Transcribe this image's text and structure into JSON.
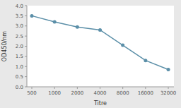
{
  "chart_data": {
    "type": "line",
    "x": [
      500,
      1000,
      2000,
      4000,
      8000,
      16000,
      32000
    ],
    "y": [
      3.5,
      3.2,
      2.95,
      2.8,
      2.05,
      1.3,
      0.85
    ],
    "xlabel": "Titre",
    "ylabel": "OD450/nm",
    "log": "x",
    "xlim": [
      430,
      38000
    ],
    "xticks": [
      500,
      1000,
      2000,
      4000,
      8000,
      16000,
      32000
    ],
    "ylim": [
      0,
      4
    ],
    "yticks": [
      {
        "value": 0,
        "label": "0.0"
      },
      0.5,
      {
        "value": 1,
        "label": "1.0"
      },
      1.5,
      {
        "value": 2,
        "label": "2.0"
      },
      2.5,
      {
        "value": 3,
        "label": "3.0"
      },
      3.5,
      {
        "value": 4,
        "label": "4.0"
      }
    ],
    "color": "#5b8fa8",
    "marker": "circle",
    "grid": false
  }
}
